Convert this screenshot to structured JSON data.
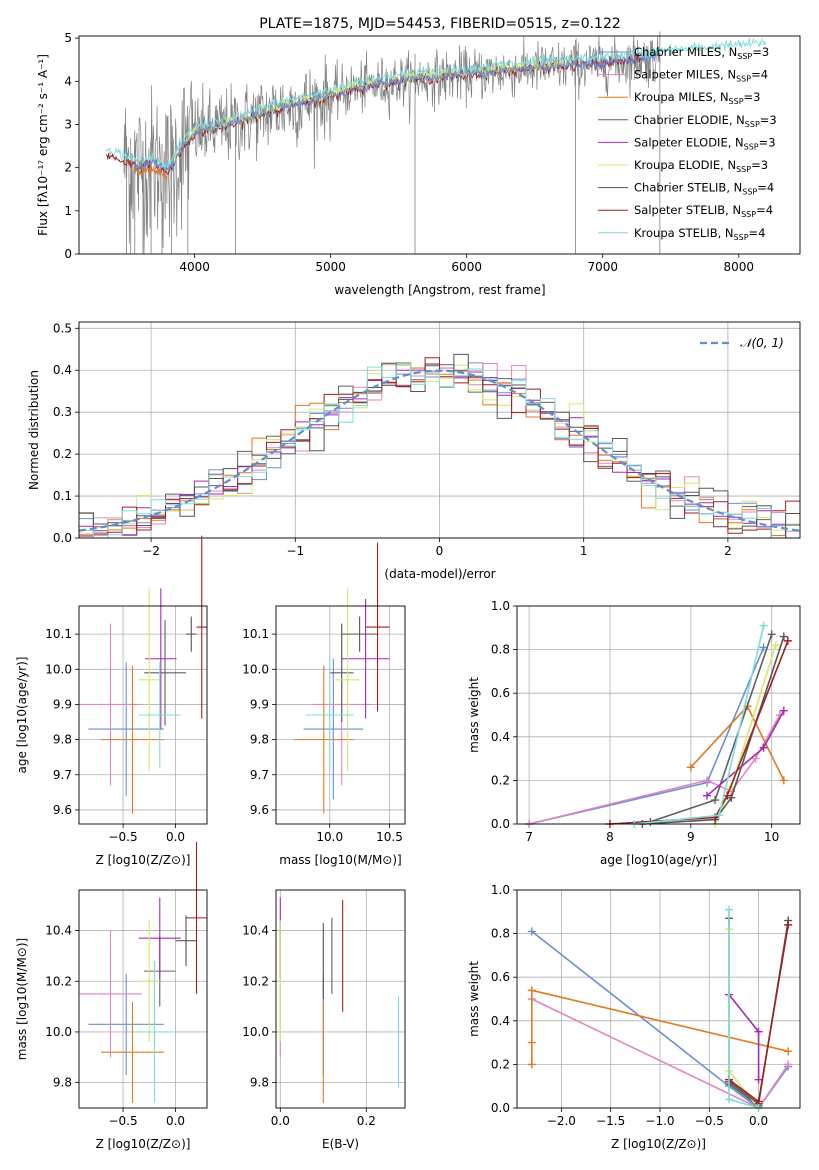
{
  "colors": {
    "chabrier_miles": "#6a8fd6",
    "salpeter_miles": "#e086c0",
    "kroupa_miles": "#e07a1f",
    "chabrier_elodie": "#606060",
    "salpeter_elodie": "#a32ab8",
    "kroupa_elodie": "#d6e86a",
    "chabrier_stelib": "#555555",
    "salpeter_stelib": "#a31f1f",
    "kroupa_stelib": "#7fdcdc",
    "gray_spectrum": "#808080",
    "normal_curve": "#5b8fd6"
  },
  "chart_data": [
    {
      "type": "line",
      "title": "PLATE=1875, MJD=54453, FIBERID=0515, z=0.122",
      "xlabel": "wavelength [Angstrom, rest frame]",
      "ylabel": "Flux [fλ10⁻¹⁷ erg cm⁻² s⁻¹ A⁻¹]",
      "xlim": [
        3150,
        8450
      ],
      "ylim": [
        0,
        5.05
      ],
      "xticks": [
        "4000",
        "5000",
        "6000",
        "7000",
        "8000"
      ],
      "yticks": [
        "0",
        "1",
        "2",
        "3",
        "4",
        "5"
      ],
      "legend_position": "right",
      "legend": [
        "Chabrier MILES, N_SSP=3",
        "Salpeter MILES, N_SSP=4",
        "Kroupa MILES, N_SSP=3",
        "Chabrier ELODIE, N_SSP=3",
        "Salpeter ELODIE, N_SSP=3",
        "Kroupa ELODIE, N_SSP=3",
        "Chabrier STELIB, N_SSP=4",
        "Salpeter STELIB, N_SSP=4",
        "Kroupa STELIB, N_SSP=4"
      ],
      "continuum": [
        [
          3350,
          2.3
        ],
        [
          3600,
          2.0
        ],
        [
          3700,
          2.1
        ],
        [
          3800,
          1.85
        ],
        [
          3900,
          2.4
        ],
        [
          4000,
          2.8
        ],
        [
          4300,
          3.0
        ],
        [
          4600,
          3.35
        ],
        [
          4900,
          3.55
        ],
        [
          5200,
          3.85
        ],
        [
          5500,
          4.0
        ],
        [
          6000,
          4.15
        ],
        [
          6500,
          4.3
        ],
        [
          7000,
          4.4
        ],
        [
          7400,
          4.55
        ],
        [
          8200,
          4.75
        ]
      ]
    },
    {
      "type": "histogram",
      "xlabel": "(data-model)/error",
      "ylabel": "Normed distribution",
      "xlim": [
        -2.5,
        2.5
      ],
      "ylim": [
        0,
        0.515
      ],
      "xticks": [
        "−2",
        "−1",
        "0",
        "1",
        "2"
      ],
      "yticks": [
        "0.0",
        "0.1",
        "0.2",
        "0.3",
        "0.4",
        "0.5"
      ],
      "bin_width": 0.1,
      "legend": [
        "𝒩(0, 1)"
      ],
      "legend_position": "upper right",
      "grid": true
    },
    {
      "type": "errorbar",
      "xlabel": "Z [log10(Z/Z⊙)]",
      "ylabel": "age  [log10(age/yr)]",
      "xlim": [
        -0.92,
        0.3
      ],
      "ylim": [
        9.56,
        10.18
      ],
      "xticks": [
        "−0.5",
        "0.0"
      ],
      "yticks": [
        "9.6",
        "9.7",
        "9.8",
        "9.9",
        "10.0",
        "10.1"
      ],
      "points": [
        {
          "model": "chabrier_miles",
          "x": -0.47,
          "xerr": 0.36,
          "y": 9.83,
          "yerr": 0.19
        },
        {
          "model": "salpeter_miles",
          "x": -0.62,
          "xerr": 0.3,
          "y": 9.9,
          "yerr": 0.23
        },
        {
          "model": "kroupa_miles",
          "x": -0.41,
          "xerr": 0.3,
          "y": 9.8,
          "yerr": 0.21
        },
        {
          "model": "chabrier_elodie",
          "x": -0.1,
          "xerr": 0.2,
          "y": 9.99,
          "yerr": 0.15
        },
        {
          "model": "salpeter_elodie",
          "x": -0.14,
          "xerr": 0.15,
          "y": 10.03,
          "yerr": 0.2
        },
        {
          "model": "kroupa_elodie",
          "x": -0.25,
          "xerr": 0.1,
          "y": 9.97,
          "yerr": 0.26
        },
        {
          "model": "chabrier_stelib",
          "x": 0.15,
          "xerr": 0.05,
          "y": 10.1,
          "yerr": 0.05
        },
        {
          "model": "salpeter_stelib",
          "x": 0.25,
          "xerr": 0.05,
          "y": 10.12,
          "yerr": 0.26
        },
        {
          "model": "kroupa_stelib",
          "x": -0.15,
          "xerr": 0.2,
          "y": 9.87,
          "yerr": 0.15
        }
      ]
    },
    {
      "type": "errorbar",
      "xlabel": "mass [log10(M/M⊙)]",
      "ylabel": "",
      "xlim": [
        9.55,
        10.63
      ],
      "ylim": [
        9.56,
        10.18
      ],
      "xticks": [
        "10.0",
        "10.5"
      ],
      "yticks": [
        "9.6",
        "9.7",
        "9.8",
        "9.9",
        "10.0",
        "10.1"
      ],
      "points": [
        {
          "model": "chabrier_miles",
          "x": 10.03,
          "xerr": 0.25,
          "y": 9.83,
          "yerr": 0.2
        },
        {
          "model": "salpeter_miles",
          "x": 10.1,
          "xerr": 0.25,
          "y": 9.9,
          "yerr": 0.23
        },
        {
          "model": "kroupa_miles",
          "x": 9.95,
          "xerr": 0.25,
          "y": 9.8,
          "yerr": 0.21
        },
        {
          "model": "chabrier_elodie",
          "x": 10.1,
          "xerr": 0.1,
          "y": 9.99,
          "yerr": 0.14
        },
        {
          "model": "salpeter_elodie",
          "x": 10.3,
          "xerr": 0.2,
          "y": 10.03,
          "yerr": 0.17
        },
        {
          "model": "kroupa_elodie",
          "x": 10.15,
          "xerr": 0.1,
          "y": 9.97,
          "yerr": 0.26
        },
        {
          "model": "chabrier_stelib",
          "x": 10.25,
          "xerr": 0.15,
          "y": 10.1,
          "yerr": 0.05
        },
        {
          "model": "salpeter_stelib",
          "x": 10.4,
          "xerr": 0.1,
          "y": 10.12,
          "yerr": 0.24
        },
        {
          "model": "kroupa_stelib",
          "x": 10.0,
          "xerr": 0.2,
          "y": 9.87,
          "yerr": 0.16
        }
      ]
    },
    {
      "type": "line",
      "xlabel": "age  [log10(age/yr)]",
      "ylabel": "mass weight",
      "xlim": [
        6.85,
        10.35
      ],
      "ylim": [
        0,
        1.0
      ],
      "xticks": [
        "7",
        "8",
        "9",
        "10"
      ],
      "yticks": [
        "0.0",
        "0.2",
        "0.4",
        "0.6",
        "0.8",
        "1.0"
      ],
      "grid": true,
      "series": [
        {
          "model": "chabrier_miles",
          "x": [
            7.0,
            9.2,
            9.9
          ],
          "y": [
            0.0,
            0.19,
            0.81
          ]
        },
        {
          "model": "salpeter_miles",
          "x": [
            7.0,
            9.2,
            9.5,
            9.8,
            10.1
          ],
          "y": [
            0.0,
            0.2,
            0.15,
            0.3,
            0.5
          ]
        },
        {
          "model": "kroupa_miles",
          "x": [
            9.0,
            9.7,
            10.15
          ],
          "y": [
            0.26,
            0.54,
            0.2
          ]
        },
        {
          "model": "chabrier_elodie",
          "x": [
            8.5,
            9.3,
            10.0
          ],
          "y": [
            0.01,
            0.11,
            0.87
          ]
        },
        {
          "model": "salpeter_elodie",
          "x": [
            9.2,
            9.9,
            10.15
          ],
          "y": [
            0.13,
            0.35,
            0.52
          ]
        },
        {
          "model": "kroupa_elodie",
          "x": [
            9.3,
            9.5,
            10.05
          ],
          "y": [
            0.0,
            0.17,
            0.82
          ]
        },
        {
          "model": "chabrier_stelib",
          "x": [
            8.4,
            9.3,
            9.5,
            10.15
          ],
          "y": [
            0.0,
            0.02,
            0.12,
            0.86
          ]
        },
        {
          "model": "salpeter_stelib",
          "x": [
            8.0,
            9.3,
            9.45,
            10.2
          ],
          "y": [
            0.0,
            0.03,
            0.13,
            0.84
          ]
        },
        {
          "model": "kroupa_stelib",
          "x": [
            8.3,
            9.35,
            9.9
          ],
          "y": [
            0.0,
            0.04,
            0.91
          ]
        }
      ]
    },
    {
      "type": "errorbar",
      "xlabel": "Z [log10(Z/Z⊙)]",
      "ylabel": "mass [log10(M/M⊙)]",
      "xlim": [
        -0.92,
        0.3
      ],
      "ylim": [
        9.7,
        10.56
      ],
      "xticks": [
        "−0.5",
        "0.0"
      ],
      "yticks": [
        "9.8",
        "10.0",
        "10.2",
        "10.4"
      ],
      "points": [
        {
          "model": "chabrier_miles",
          "x": -0.47,
          "xerr": 0.36,
          "y": 10.03,
          "yerr": 0.2
        },
        {
          "model": "salpeter_miles",
          "x": -0.62,
          "xerr": 0.3,
          "y": 10.15,
          "yerr": 0.25
        },
        {
          "model": "kroupa_miles",
          "x": -0.41,
          "xerr": 0.3,
          "y": 9.92,
          "yerr": 0.2
        },
        {
          "model": "chabrier_elodie",
          "x": -0.15,
          "xerr": 0.15,
          "y": 10.24,
          "yerr": 0.14
        },
        {
          "model": "salpeter_elodie",
          "x": -0.15,
          "xerr": 0.2,
          "y": 10.37,
          "yerr": 0.16
        },
        {
          "model": "kroupa_elodie",
          "x": -0.25,
          "xerr": 0.1,
          "y": 10.2,
          "yerr": 0.24
        },
        {
          "model": "chabrier_stelib",
          "x": 0.1,
          "xerr": 0.1,
          "y": 10.36,
          "yerr": 0.1
        },
        {
          "model": "salpeter_stelib",
          "x": 0.2,
          "xerr": 0.1,
          "y": 10.45,
          "yerr": 0.3
        },
        {
          "model": "kroupa_stelib",
          "x": -0.2,
          "xerr": 0.2,
          "y": 10.0,
          "yerr": 0.28
        }
      ]
    },
    {
      "type": "errorbar",
      "xlabel": "E(B-V)",
      "ylabel": "",
      "xlim": [
        -0.01,
        0.29
      ],
      "ylim": [
        9.7,
        10.56
      ],
      "xticks": [
        "0.0",
        "0.2"
      ],
      "yticks": [
        "9.8",
        "10.0",
        "10.2",
        "10.4"
      ],
      "points": [
        {
          "model": "chabrier_miles",
          "x": 0.1,
          "xerr": 0.0,
          "y": 10.03,
          "yerr": 0.2
        },
        {
          "model": "salpeter_miles",
          "x": 0.0,
          "xerr": 0.0,
          "y": 10.15,
          "yerr": 0.25
        },
        {
          "model": "kroupa_miles",
          "x": 0.1,
          "xerr": 0.0,
          "y": 9.92,
          "yerr": 0.2
        },
        {
          "model": "chabrier_elodie",
          "x": 0.12,
          "xerr": 0.0,
          "y": 10.3,
          "yerr": 0.15
        },
        {
          "model": "salpeter_elodie",
          "x": 0.0,
          "xerr": 0.0,
          "y": 10.37,
          "yerr": 0.16
        },
        {
          "model": "kroupa_elodie",
          "x": 0.0,
          "xerr": 0.0,
          "y": 10.2,
          "yerr": 0.24
        },
        {
          "model": "chabrier_stelib",
          "x": 0.1,
          "xerr": 0.0,
          "y": 10.28,
          "yerr": 0.15
        },
        {
          "model": "salpeter_stelib",
          "x": 0.145,
          "xerr": 0.0,
          "y": 10.3,
          "yerr": 0.22
        },
        {
          "model": "kroupa_stelib",
          "x": 0.275,
          "xerr": 0.0,
          "y": 9.96,
          "yerr": 0.18
        }
      ]
    },
    {
      "type": "line",
      "xlabel": "Z [log10(Z/Z⊙)]",
      "ylabel": "mass weight",
      "xlim": [
        -2.45,
        0.42
      ],
      "ylim": [
        0,
        1.0
      ],
      "xticks": [
        "−2.0",
        "−1.5",
        "−1.0",
        "−0.5",
        "0.0"
      ],
      "yticks": [
        "0.0",
        "0.2",
        "0.4",
        "0.6",
        "0.8",
        "1.0"
      ],
      "grid": true,
      "series": [
        {
          "model": "chabrier_miles",
          "x": [
            -2.3,
            -0.3,
            0.0,
            0.3
          ],
          "y": [
            0.81,
            0.1,
            0.0,
            0.19
          ]
        },
        {
          "model": "salpeter_miles",
          "x": [
            -2.3,
            0.0,
            0.3
          ],
          "y": [
            0.5,
            0.0,
            0.2
          ]
        },
        {
          "model": "kroupa_miles",
          "x": [
            -2.3,
            -2.3,
            -2.3,
            0.3
          ],
          "y": [
            0.2,
            0.3,
            0.54,
            0.26
          ]
        },
        {
          "model": "chabrier_elodie",
          "x": [
            -0.3,
            -0.3,
            0.0
          ],
          "y": [
            0.87,
            0.11,
            0.01
          ]
        },
        {
          "model": "salpeter_elodie",
          "x": [
            -0.3,
            0.0,
            0.0
          ],
          "y": [
            0.52,
            0.35,
            0.13
          ]
        },
        {
          "model": "kroupa_elodie",
          "x": [
            -0.3,
            -0.3,
            0.0
          ],
          "y": [
            0.82,
            0.17,
            0.0
          ]
        },
        {
          "model": "chabrier_stelib",
          "x": [
            -0.3,
            0.0,
            0.3
          ],
          "y": [
            0.12,
            0.02,
            0.86
          ]
        },
        {
          "model": "salpeter_stelib",
          "x": [
            -0.3,
            0.0,
            0.3
          ],
          "y": [
            0.13,
            0.03,
            0.84
          ]
        },
        {
          "model": "kroupa_stelib",
          "x": [
            -0.3,
            -0.3,
            0.0
          ],
          "y": [
            0.91,
            0.04,
            0.0
          ]
        }
      ]
    }
  ]
}
